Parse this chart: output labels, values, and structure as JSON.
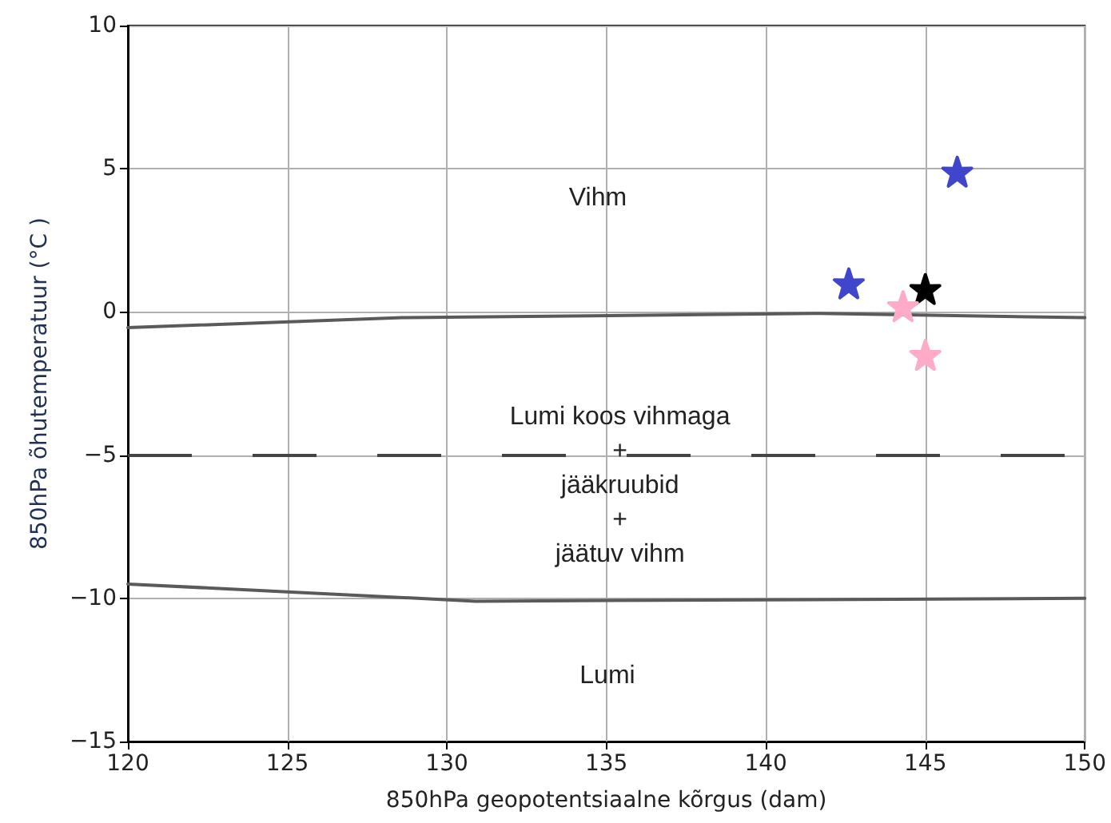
{
  "chart_data": {
    "type": "scatter",
    "xlabel": "850hPa geopotentsiaalne kõrgus (dam)",
    "ylabel": "850hPa õhutemperatuur (°C )",
    "xlim": [
      120,
      150
    ],
    "xticks": [
      120,
      125,
      130,
      135,
      140,
      145,
      150
    ],
    "ylim": [
      -15,
      10
    ],
    "yticks": [
      {
        "value": -15,
        "label": "−15"
      },
      {
        "value": -10,
        "label": "−10"
      },
      {
        "value": -5,
        "label": "−5"
      },
      0,
      5,
      10
    ],
    "grid": true,
    "marker": "star",
    "series": [
      {
        "type": "line",
        "marker": "none",
        "line_style": "solid",
        "color": "#5a5a5a",
        "x": [
          120,
          128.6,
          141.7,
          150
        ],
        "values": [
          -0.55,
          -0.2,
          -0.05,
          -0.2
        ]
      },
      {
        "type": "line",
        "marker": "none",
        "line_style": "solid",
        "color": "#5a5a5a",
        "x": [
          120,
          130.9,
          150
        ],
        "values": [
          -9.5,
          -10.1,
          -10.0
        ]
      },
      {
        "color": "#3f46cc",
        "x": [
          142.6,
          146
        ],
        "values": [
          1.0,
          4.9
        ]
      },
      {
        "color": "#000000",
        "x": [
          145
        ],
        "values": [
          0.8
        ]
      },
      {
        "color": "#ffabc8",
        "x": [
          144.3,
          145
        ],
        "values": [
          0.2,
          -1.5
        ]
      }
    ],
    "ref_lines": [
      {
        "axis": "y",
        "value": -5,
        "color": "#444444",
        "line_style": "dashed"
      }
    ],
    "annotations": [
      "Vihm",
      "Lumi koos vihmaga\n+\njääkruubid\n+\njäätuv vihm",
      "Lumi"
    ]
  }
}
